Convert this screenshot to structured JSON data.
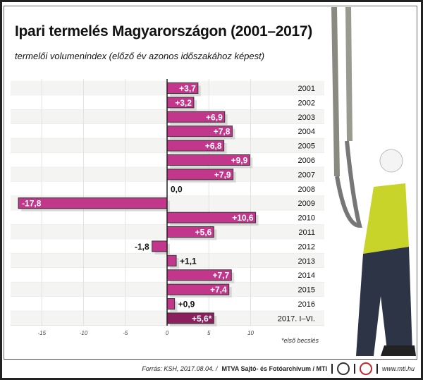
{
  "title": "Ipari termelés Magyarországon (2001–2017)",
  "subtitle": "termelői volumenindex (előző év azonos időszakához képest)",
  "note": "*első becslés",
  "footer": {
    "source": "Forrás: KSH, 2017.08.04. /",
    "agency": "MTVA Sajtó- és Fotóarchívum / MTI",
    "url": "www.mti.hu",
    "logo1_text": "MTVA"
  },
  "chart_data": {
    "type": "bar",
    "orientation": "horizontal",
    "categories": [
      "2001",
      "2002",
      "2003",
      "2004",
      "2005",
      "2006",
      "2007",
      "2008",
      "2009",
      "2010",
      "2011",
      "2012",
      "2013",
      "2014",
      "2015",
      "2016",
      "2017. I–VI."
    ],
    "values": [
      3.7,
      3.2,
      6.9,
      7.8,
      6.8,
      9.9,
      7.9,
      0.0,
      -17.8,
      10.6,
      5.6,
      -1.8,
      1.1,
      7.7,
      7.4,
      0.9,
      5.6
    ],
    "labels": [
      "+3,7",
      "+3,2",
      "+6,9",
      "+7,8",
      "+6,8",
      "+9,9",
      "+7,9",
      "0,0",
      "-17,8",
      "+10,6",
      "+5,6",
      "-1,8",
      "+1,1",
      "+7,7",
      "+7,4",
      "+0,9",
      "+5,6*"
    ],
    "xticks": [
      -15,
      -10,
      -5,
      0,
      5,
      10
    ],
    "xlim": [
      -18.5,
      12
    ],
    "grid": true,
    "colors": {
      "bar": "#c2378c",
      "highlight": "#8c1f5e"
    }
  }
}
